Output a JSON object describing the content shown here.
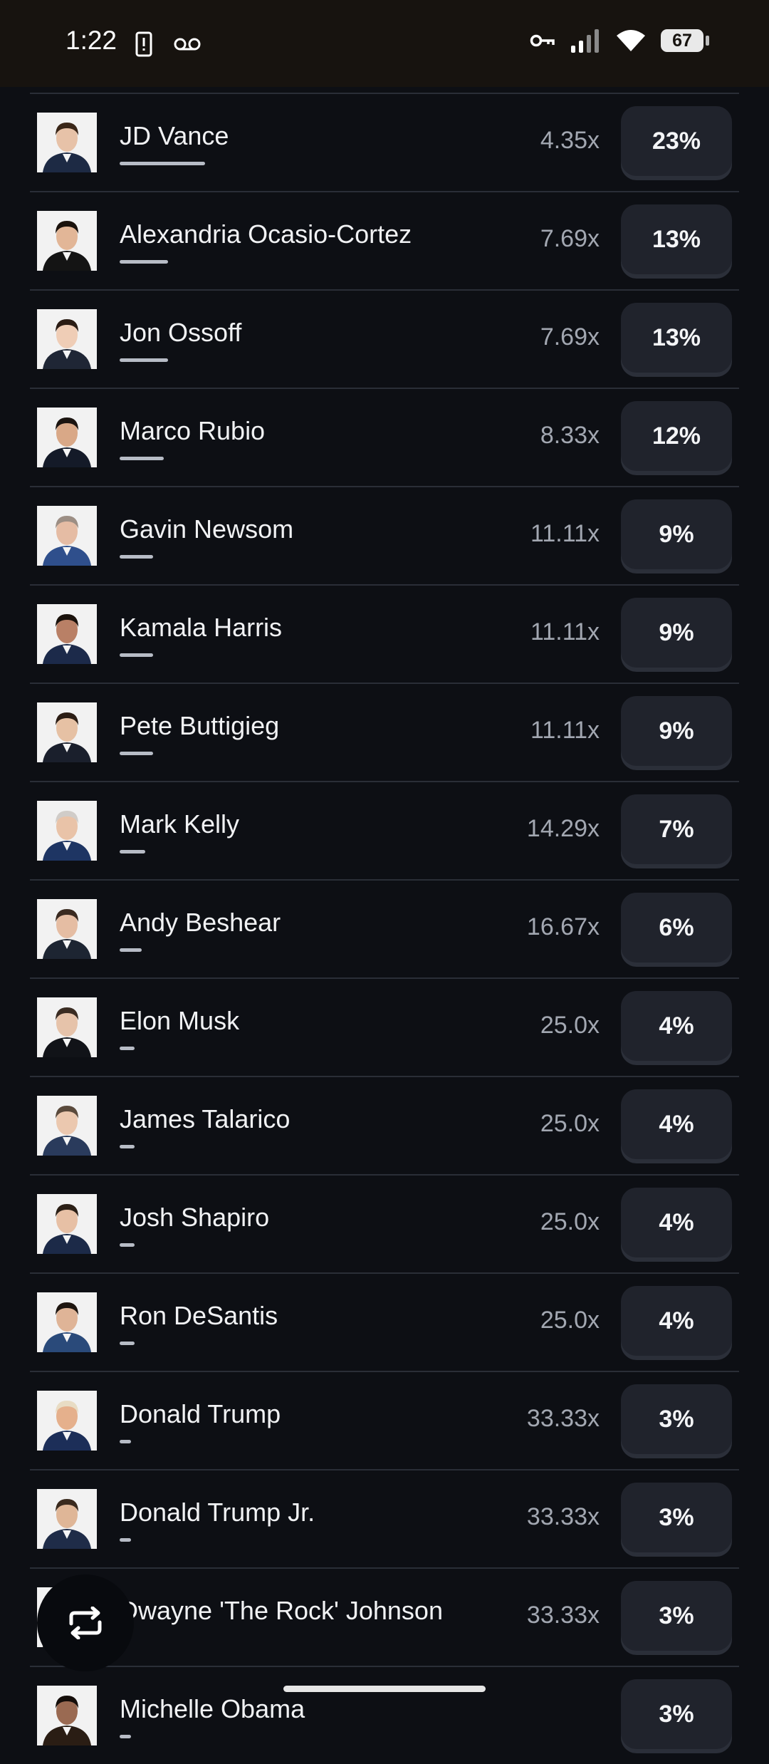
{
  "status_bar": {
    "time": "1:22",
    "battery": "67",
    "icons": [
      "sim-alert-icon",
      "voicemail-icon",
      "vpn-key-icon",
      "signal-icon",
      "wifi-icon",
      "battery-icon"
    ]
  },
  "colors": {
    "background": "#0d0f14",
    "divider": "#2a2e37",
    "button": "#20232c",
    "multiplier_text": "#a2a7b1"
  },
  "candidates": [
    {
      "name": "JD Vance",
      "multiplier": "4.35x",
      "percent": "23%",
      "share": 23,
      "skin": "#e7c2a8",
      "hair": "#3a2618",
      "suit": "#1d2a44"
    },
    {
      "name": "Alexandria Ocasio-Cortez",
      "multiplier": "7.69x",
      "percent": "13%",
      "share": 13,
      "skin": "#e2b697",
      "hair": "#1a120c",
      "suit": "#141414"
    },
    {
      "name": "Jon Ossoff",
      "multiplier": "7.69x",
      "percent": "13%",
      "share": 13,
      "skin": "#efcdb6",
      "hair": "#2a1c14",
      "suit": "#1f2635"
    },
    {
      "name": "Marco Rubio",
      "multiplier": "8.33x",
      "percent": "12%",
      "share": 12,
      "skin": "#d9a887",
      "hair": "#1b1410",
      "suit": "#141a28"
    },
    {
      "name": "Gavin Newsom",
      "multiplier": "11.11x",
      "percent": "9%",
      "share": 9,
      "skin": "#e5bca4",
      "hair": "#9c8e84",
      "suit": "#2f4f8c"
    },
    {
      "name": "Kamala Harris",
      "multiplier": "11.11x",
      "percent": "9%",
      "share": 9,
      "skin": "#b98066",
      "hair": "#1a120c",
      "suit": "#1c2a4a"
    },
    {
      "name": "Pete Buttigieg",
      "multiplier": "11.11x",
      "percent": "9%",
      "share": 9,
      "skin": "#e6c1a4",
      "hair": "#2b1d14",
      "suit": "#1a1f2c"
    },
    {
      "name": "Mark Kelly",
      "multiplier": "14.29x",
      "percent": "7%",
      "share": 7,
      "skin": "#e9c3a8",
      "hair": "#d0ccc8",
      "suit": "#1e3563"
    },
    {
      "name": "Andy Beshear",
      "multiplier": "16.67x",
      "percent": "6%",
      "share": 6,
      "skin": "#e5bda3",
      "hair": "#3a2a20",
      "suit": "#1d2532"
    },
    {
      "name": "Elon Musk",
      "multiplier": "25.0x",
      "percent": "4%",
      "share": 4,
      "skin": "#e6c3aa",
      "hair": "#3a2c22",
      "suit": "#111318"
    },
    {
      "name": "James Talarico",
      "multiplier": "25.0x",
      "percent": "4%",
      "share": 4,
      "skin": "#ebc8af",
      "hair": "#5a4a3c",
      "suit": "#2a3b5c"
    },
    {
      "name": "Josh Shapiro",
      "multiplier": "25.0x",
      "percent": "4%",
      "share": 4,
      "skin": "#e7c0a5",
      "hair": "#2b1f16",
      "suit": "#1c2a48"
    },
    {
      "name": "Ron DeSantis",
      "multiplier": "25.0x",
      "percent": "4%",
      "share": 4,
      "skin": "#dfb497",
      "hair": "#1e1610",
      "suit": "#2a4a7a"
    },
    {
      "name": "Donald Trump",
      "multiplier": "33.33x",
      "percent": "3%",
      "share": 3,
      "skin": "#e5b08c",
      "hair": "#e8dcc4",
      "suit": "#1c2e58"
    },
    {
      "name": "Donald Trump Jr.",
      "multiplier": "33.33x",
      "percent": "3%",
      "share": 3,
      "skin": "#dfb697",
      "hair": "#3a2a1e",
      "suit": "#1f2c48"
    },
    {
      "name": "Dwayne 'The Rock' Johnson",
      "multiplier": "33.33x",
      "percent": "3%",
      "share": 3,
      "skin": "#b98066",
      "hair": "#3a2418",
      "suit": "#2a1d14"
    },
    {
      "name": "Michelle Obama",
      "multiplier": "",
      "percent": "3%",
      "share": 3,
      "skin": "#9a6a52",
      "hair": "#150e0a",
      "suit": "#2a1d14"
    }
  ],
  "fab": {
    "icon": "repeat-icon"
  }
}
